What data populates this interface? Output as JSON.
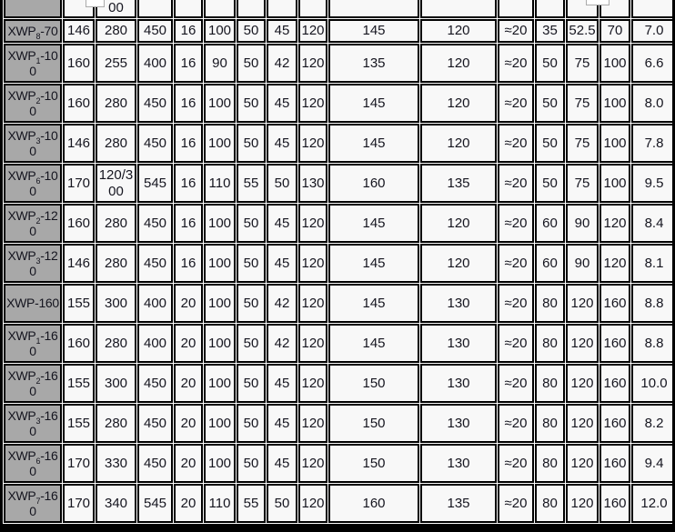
{
  "table": {
    "colors": {
      "header_bg": "#a8a8a8",
      "cell_bg": "#f8f8f8",
      "border": "#000000",
      "text": "#15151f"
    },
    "partial_top_row": {
      "values": [
        "",
        "00",
        "",
        "",
        "",
        "",
        "",
        "",
        "",
        "",
        "",
        "",
        "",
        "",
        ""
      ]
    },
    "rows": [
      {
        "label": {
          "main": "XWP",
          "sub": "8",
          "suffix": "-70"
        },
        "values": [
          "146",
          "280",
          "450",
          "16",
          "100",
          "50",
          "45",
          "120",
          "145",
          "120",
          "≈20",
          "35",
          "52.5",
          "70",
          "7.0"
        ]
      },
      {
        "label": {
          "main": "XWP",
          "sub": "1",
          "suffix": "-100"
        },
        "values": [
          "160",
          "255",
          "400",
          "16",
          "90",
          "50",
          "42",
          "120",
          "135",
          "120",
          "≈20",
          "50",
          "75",
          "100",
          "6.6"
        ]
      },
      {
        "label": {
          "main": "XWP",
          "sub": "2",
          "suffix": "-100"
        },
        "values": [
          "160",
          "280",
          "450",
          "16",
          "100",
          "50",
          "45",
          "120",
          "145",
          "120",
          "≈20",
          "50",
          "75",
          "100",
          "8.0"
        ]
      },
      {
        "label": {
          "main": "XWP",
          "sub": "3",
          "suffix": "-100"
        },
        "values": [
          "146",
          "280",
          "450",
          "16",
          "100",
          "50",
          "45",
          "120",
          "145",
          "120",
          "≈20",
          "50",
          "75",
          "100",
          "7.8"
        ]
      },
      {
        "label": {
          "main": "XWP",
          "sub": "6",
          "suffix": "-100"
        },
        "values": [
          "170",
          "120/300",
          "545",
          "16",
          "110",
          "55",
          "50",
          "130",
          "160",
          "135",
          "≈20",
          "50",
          "75",
          "100",
          "9.5"
        ]
      },
      {
        "label": {
          "main": "XWP",
          "sub": "2",
          "suffix": "-120"
        },
        "values": [
          "160",
          "280",
          "450",
          "16",
          "100",
          "50",
          "45",
          "120",
          "145",
          "120",
          "≈20",
          "60",
          "90",
          "120",
          "8.4"
        ]
      },
      {
        "label": {
          "main": "XWP",
          "sub": "3",
          "suffix": "-120"
        },
        "values": [
          "146",
          "280",
          "450",
          "16",
          "100",
          "50",
          "45",
          "120",
          "145",
          "120",
          "≈20",
          "60",
          "90",
          "120",
          "8.1"
        ]
      },
      {
        "label": {
          "main": "XWP",
          "sub": "",
          "suffix": "-160"
        },
        "values": [
          "155",
          "300",
          "400",
          "20",
          "100",
          "50",
          "42",
          "120",
          "145",
          "130",
          "≈20",
          "80",
          "120",
          "160",
          "8.8"
        ]
      },
      {
        "label": {
          "main": "XWP",
          "sub": "1",
          "suffix": "-160"
        },
        "values": [
          "160",
          "280",
          "400",
          "20",
          "100",
          "50",
          "42",
          "120",
          "145",
          "130",
          "≈20",
          "80",
          "120",
          "160",
          "8.8"
        ]
      },
      {
        "label": {
          "main": "XWP",
          "sub": "2",
          "suffix": "-160"
        },
        "values": [
          "155",
          "300",
          "450",
          "20",
          "100",
          "50",
          "45",
          "120",
          "150",
          "130",
          "≈20",
          "80",
          "120",
          "160",
          "10.0"
        ]
      },
      {
        "label": {
          "main": "XWP",
          "sub": "3",
          "suffix": "-160"
        },
        "values": [
          "155",
          "280",
          "450",
          "20",
          "100",
          "50",
          "45",
          "120",
          "150",
          "130",
          "≈20",
          "80",
          "120",
          "160",
          "8.2"
        ]
      },
      {
        "label": {
          "main": "XWP",
          "sub": "6",
          "suffix": "-160"
        },
        "values": [
          "170",
          "330",
          "450",
          "20",
          "100",
          "50",
          "45",
          "120",
          "150",
          "130",
          "≈20",
          "80",
          "120",
          "160",
          "9.4"
        ]
      },
      {
        "label": {
          "main": "XWP",
          "sub": "7",
          "suffix": "-160"
        },
        "values": [
          "170",
          "340",
          "545",
          "20",
          "110",
          "55",
          "50",
          "120",
          "160",
          "135",
          "≈20",
          "80",
          "120",
          "160",
          "12.0"
        ]
      }
    ]
  }
}
